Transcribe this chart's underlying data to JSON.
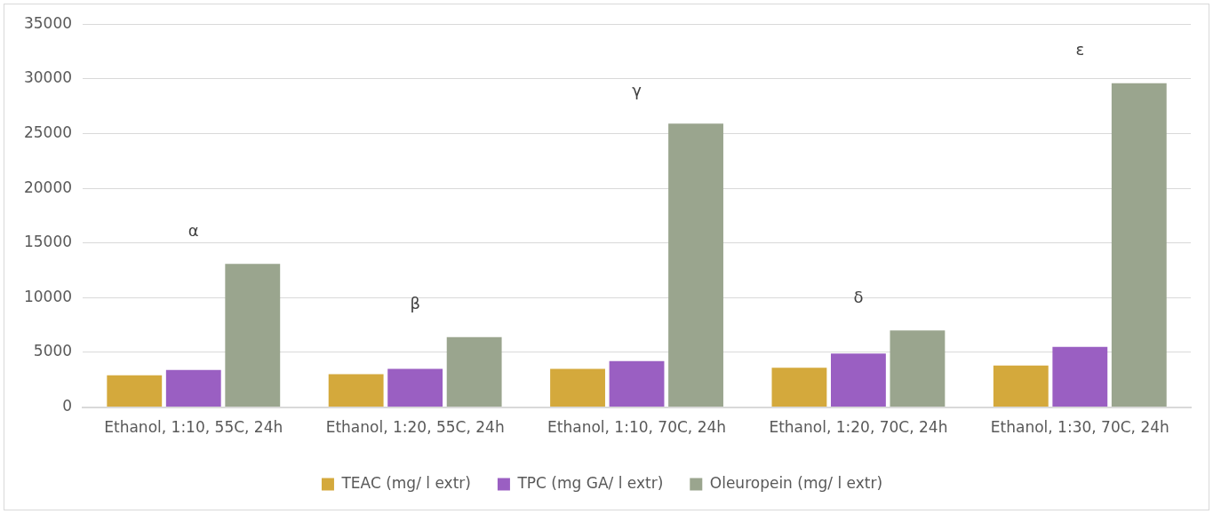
{
  "chart_data": {
    "type": "bar",
    "categories": [
      "Ethanol, 1:10, 55C, 24h",
      "Ethanol, 1:20, 55C, 24h",
      "Ethanol, 1:10, 70C, 24h",
      "Ethanol, 1:20, 70C, 24h",
      "Ethanol, 1:30, 70C, 24h"
    ],
    "series": [
      {
        "name": "TEAC (mg/ l extr)",
        "color": "#d4a93c",
        "values": [
          2900,
          3000,
          3500,
          3600,
          3800
        ]
      },
      {
        "name": "TPC (mg GA/ l extr)",
        "color": "#9a5fc2",
        "values": [
          3400,
          3500,
          4200,
          4900,
          5500
        ]
      },
      {
        "name": "Oleuropein (mg/ l extr)",
        "color": "#9aa58e",
        "values": [
          13100,
          6400,
          25900,
          7000,
          29600
        ]
      }
    ],
    "ylim": [
      0,
      35000
    ],
    "yticks": [
      0,
      5000,
      10000,
      15000,
      20000,
      25000,
      30000,
      35000
    ],
    "grid": "y",
    "legend": "bottom",
    "annotations": [
      "α",
      "β",
      "γ",
      "δ",
      "ε"
    ]
  }
}
